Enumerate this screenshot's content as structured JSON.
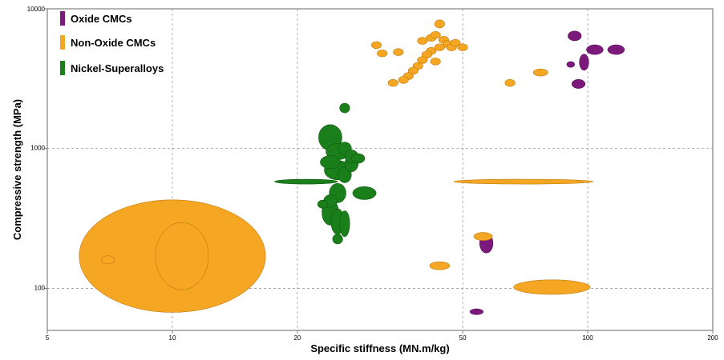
{
  "chart_data": {
    "type": "scatter",
    "xlabel": "Specific stiffness (MN.m/kg)",
    "ylabel": "Compressive strength (MPa)",
    "x_scale": "log",
    "y_scale": "log",
    "xlim": [
      5,
      200
    ],
    "ylim": [
      50,
      10000
    ],
    "x_ticks": [
      5,
      10,
      20,
      50,
      100,
      200
    ],
    "y_ticks": [
      100,
      1000,
      10000
    ],
    "grid": true,
    "legend_position": "top-left",
    "series": [
      {
        "name": "Oxide CMCs",
        "color": "#7b1a7b",
        "bubbles": [
          {
            "x": 93,
            "y": 6400,
            "w": 0.02,
            "h": 0.03
          },
          {
            "x": 98,
            "y": 4150,
            "w": 0.014,
            "h": 0.05
          },
          {
            "x": 91,
            "y": 4000,
            "w": 0.012,
            "h": 0.018
          },
          {
            "x": 104,
            "y": 5100,
            "w": 0.025,
            "h": 0.03
          },
          {
            "x": 117,
            "y": 5100,
            "w": 0.025,
            "h": 0.03
          },
          {
            "x": 95,
            "y": 2900,
            "w": 0.02,
            "h": 0.028
          },
          {
            "x": 57,
            "y": 210,
            "w": 0.02,
            "h": 0.06
          },
          {
            "x": 54,
            "y": 68,
            "w": 0.02,
            "h": 0.018
          }
        ]
      },
      {
        "name": "Non-Oxide CMCs",
        "color": "#f5a623",
        "bubbles": [
          {
            "x": 10,
            "y": 170,
            "w": 0.28,
            "h": 0.35
          },
          {
            "x": 7,
            "y": 160,
            "w": 0.02,
            "h": 0.025
          },
          {
            "x": 70,
            "y": 580,
            "w": 0.21,
            "h": 0.015
          },
          {
            "x": 82,
            "y": 102,
            "w": 0.115,
            "h": 0.045
          },
          {
            "x": 44,
            "y": 145,
            "w": 0.03,
            "h": 0.025
          },
          {
            "x": 56,
            "y": 235,
            "w": 0.028,
            "h": 0.025
          },
          {
            "x": 65,
            "y": 2950,
            "w": 0.015,
            "h": 0.022
          },
          {
            "x": 77,
            "y": 3500,
            "w": 0.022,
            "h": 0.022
          },
          {
            "x": 44,
            "y": 7800,
            "w": 0.015,
            "h": 0.025
          },
          {
            "x": 31,
            "y": 5500,
            "w": 0.015,
            "h": 0.022
          },
          {
            "x": 32,
            "y": 4800,
            "w": 0.015,
            "h": 0.022
          },
          {
            "x": 35,
            "y": 4900,
            "w": 0.015,
            "h": 0.022
          },
          {
            "x": 40,
            "y": 5900,
            "w": 0.015,
            "h": 0.022
          },
          {
            "x": 42,
            "y": 6200,
            "w": 0.015,
            "h": 0.022
          },
          {
            "x": 43,
            "y": 6500,
            "w": 0.015,
            "h": 0.022
          },
          {
            "x": 45,
            "y": 6000,
            "w": 0.015,
            "h": 0.022
          },
          {
            "x": 46,
            "y": 5600,
            "w": 0.015,
            "h": 0.022
          },
          {
            "x": 47,
            "y": 5300,
            "w": 0.015,
            "h": 0.022
          },
          {
            "x": 48,
            "y": 5700,
            "w": 0.015,
            "h": 0.022
          },
          {
            "x": 50,
            "y": 5300,
            "w": 0.015,
            "h": 0.022
          },
          {
            "x": 44,
            "y": 5300,
            "w": 0.015,
            "h": 0.022
          },
          {
            "x": 42,
            "y": 5000,
            "w": 0.015,
            "h": 0.022
          },
          {
            "x": 41,
            "y": 4700,
            "w": 0.015,
            "h": 0.022
          },
          {
            "x": 40,
            "y": 4300,
            "w": 0.015,
            "h": 0.022
          },
          {
            "x": 43,
            "y": 4200,
            "w": 0.015,
            "h": 0.022
          },
          {
            "x": 39,
            "y": 3900,
            "w": 0.015,
            "h": 0.022
          },
          {
            "x": 38,
            "y": 3600,
            "w": 0.015,
            "h": 0.022
          },
          {
            "x": 37,
            "y": 3300,
            "w": 0.015,
            "h": 0.022
          },
          {
            "x": 36,
            "y": 3100,
            "w": 0.015,
            "h": 0.022
          },
          {
            "x": 34,
            "y": 2950,
            "w": 0.015,
            "h": 0.022
          }
        ]
      },
      {
        "name": "Nickel-Superalloys",
        "color": "#1a7f1a",
        "bubbles": [
          {
            "x": 26,
            "y": 1950,
            "w": 0.015,
            "h": 0.03
          },
          {
            "x": 24,
            "y": 1200,
            "w": 0.035,
            "h": 0.08
          },
          {
            "x": 25,
            "y": 950,
            "w": 0.035,
            "h": 0.05
          },
          {
            "x": 26,
            "y": 1000,
            "w": 0.02,
            "h": 0.04
          },
          {
            "x": 27,
            "y": 880,
            "w": 0.02,
            "h": 0.04
          },
          {
            "x": 24,
            "y": 800,
            "w": 0.03,
            "h": 0.04
          },
          {
            "x": 25,
            "y": 700,
            "w": 0.04,
            "h": 0.06
          },
          {
            "x": 26,
            "y": 650,
            "w": 0.02,
            "h": 0.05
          },
          {
            "x": 27,
            "y": 780,
            "w": 0.02,
            "h": 0.05
          },
          {
            "x": 28,
            "y": 850,
            "w": 0.02,
            "h": 0.03
          },
          {
            "x": 21,
            "y": 580,
            "w": 0.095,
            "h": 0.015
          },
          {
            "x": 29,
            "y": 480,
            "w": 0.035,
            "h": 0.04
          },
          {
            "x": 25,
            "y": 480,
            "w": 0.025,
            "h": 0.06
          },
          {
            "x": 24,
            "y": 420,
            "w": 0.02,
            "h": 0.04
          },
          {
            "x": 23,
            "y": 400,
            "w": 0.015,
            "h": 0.025
          },
          {
            "x": 24,
            "y": 350,
            "w": 0.025,
            "h": 0.08
          },
          {
            "x": 25,
            "y": 300,
            "w": 0.02,
            "h": 0.08
          },
          {
            "x": 26,
            "y": 290,
            "w": 0.015,
            "h": 0.08
          },
          {
            "x": 25,
            "y": 225,
            "w": 0.015,
            "h": 0.03
          }
        ]
      }
    ]
  }
}
